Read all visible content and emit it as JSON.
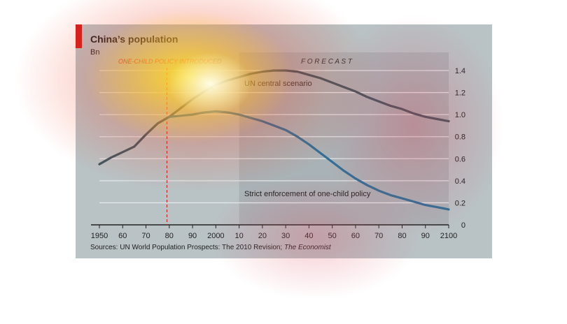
{
  "title": "China’s population",
  "unit_label": "Bn",
  "source_prefix": "Sources: UN World Population Prospects: The 2010 Revision; ",
  "source_italic": "The Economist",
  "colors": {
    "panel_bg": "#b9c2c5",
    "forecast_bg": "#a9b2b6",
    "accent_red": "#d41b1b",
    "un_line": "#3e5660",
    "strict_line": "#2f6f97"
  },
  "chart_data": {
    "type": "line",
    "title": "China’s population",
    "ylabel": "Bn",
    "xlabel": "",
    "ylim": [
      0,
      1.4
    ],
    "xlim": [
      1950,
      2100
    ],
    "y_ticks": [
      0,
      0.2,
      0.4,
      0.6,
      0.8,
      1.0,
      1.2,
      1.4
    ],
    "y_tick_labels": [
      "0",
      "0.2",
      "0.4",
      "0.6",
      "0.8",
      "1.0",
      "1.2",
      "1.4"
    ],
    "x_ticks": [
      1950,
      1960,
      1970,
      1980,
      1990,
      2000,
      2010,
      2020,
      2030,
      2040,
      2050,
      2060,
      2070,
      2080,
      2090,
      2100
    ],
    "x_tick_labels": [
      "1950",
      "60",
      "70",
      "80",
      "90",
      "2000",
      "10",
      "20",
      "30",
      "40",
      "50",
      "60",
      "70",
      "80",
      "90",
      "2100"
    ],
    "grid": true,
    "annotations": {
      "policy_year": 1979,
      "policy_label": "ONE-CHILD POLICY INTRODUCED",
      "forecast_start": 2010,
      "forecast_label": "F O R E C A S T"
    },
    "series": [
      {
        "name": "UN central scenario",
        "x": [
          1950,
          1955,
          1960,
          1965,
          1970,
          1975,
          1980,
          1985,
          1990,
          1995,
          2000,
          2005,
          2010,
          2015,
          2020,
          2025,
          2030,
          2035,
          2040,
          2045,
          2050,
          2055,
          2060,
          2065,
          2070,
          2075,
          2080,
          2085,
          2090,
          2095,
          2100
        ],
        "y": [
          0.55,
          0.61,
          0.66,
          0.71,
          0.82,
          0.92,
          0.98,
          1.06,
          1.14,
          1.21,
          1.27,
          1.31,
          1.34,
          1.37,
          1.39,
          1.4,
          1.4,
          1.39,
          1.36,
          1.33,
          1.29,
          1.25,
          1.21,
          1.16,
          1.12,
          1.08,
          1.05,
          1.01,
          0.98,
          0.96,
          0.94
        ]
      },
      {
        "name": "Strict enforcement of one-child policy",
        "x": [
          1980,
          1985,
          1990,
          1995,
          2000,
          2005,
          2010,
          2015,
          2020,
          2025,
          2030,
          2035,
          2040,
          2045,
          2050,
          2055,
          2060,
          2065,
          2070,
          2075,
          2080,
          2085,
          2090,
          2095,
          2100
        ],
        "y": [
          0.98,
          0.99,
          1.0,
          1.02,
          1.03,
          1.02,
          1.0,
          0.97,
          0.94,
          0.9,
          0.86,
          0.8,
          0.73,
          0.65,
          0.57,
          0.49,
          0.42,
          0.36,
          0.31,
          0.27,
          0.24,
          0.21,
          0.18,
          0.16,
          0.14
        ]
      }
    ]
  }
}
